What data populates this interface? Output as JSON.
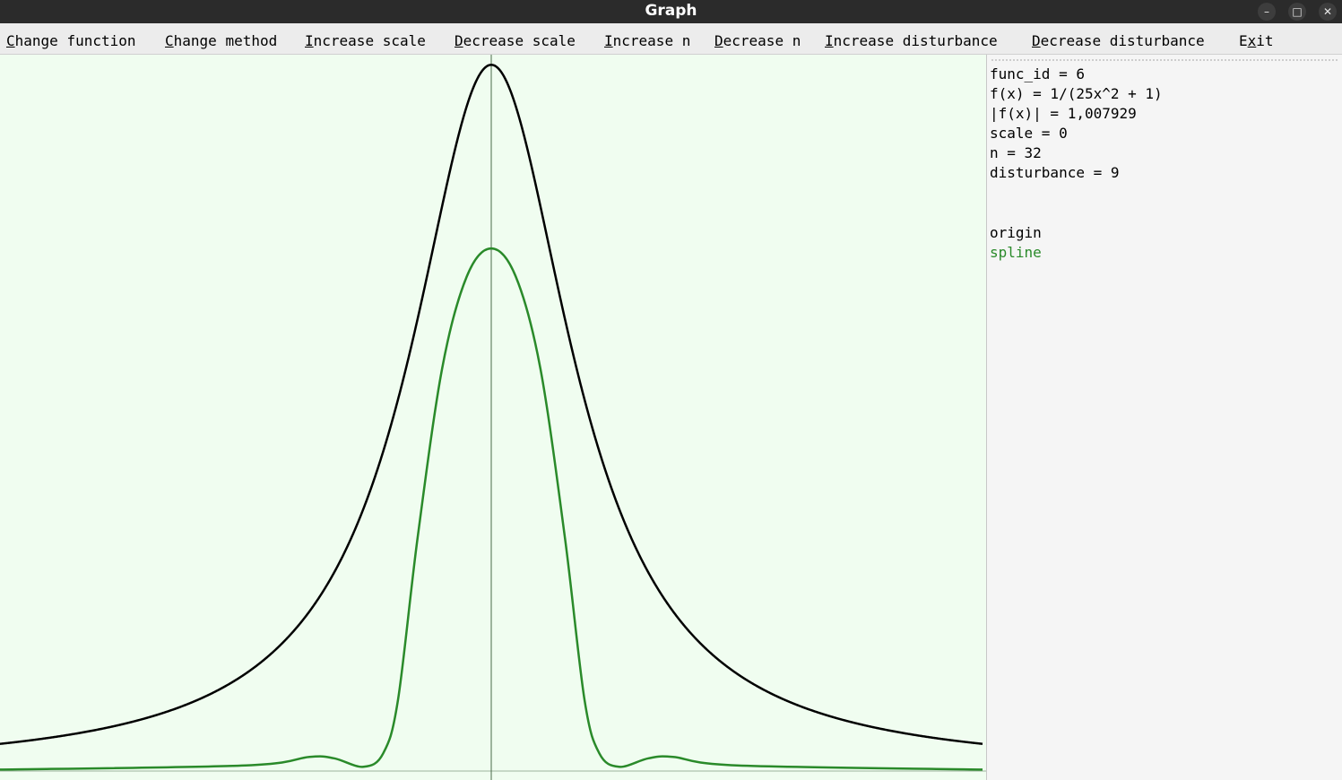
{
  "window": {
    "title": "Graph",
    "controls": {
      "minimize": "–",
      "maximize": "□",
      "close": "✕"
    }
  },
  "menu": [
    {
      "mnemonic": "C",
      "rest": "hange function"
    },
    {
      "mnemonic": "C",
      "rest": "hange method"
    },
    {
      "mnemonic": "I",
      "rest": "ncrease scale"
    },
    {
      "mnemonic": "D",
      "rest": "ecrease scale"
    },
    {
      "mnemonic": "I",
      "rest": "ncrease n"
    },
    {
      "mnemonic": "D",
      "rest": "ecrease n"
    },
    {
      "mnemonic": "I",
      "rest": "ncrease disturbance"
    },
    {
      "mnemonic": "D",
      "rest": "ecrease disturbance"
    },
    {
      "prefix": "E",
      "mnemonic": "x",
      "rest": "it"
    }
  ],
  "info": {
    "func_id": "func_id = 6",
    "formula": "f(x) = 1/(25x^2 + 1)",
    "norm": "|f(x)| = 1,007929",
    "scale": "scale = 0",
    "n": "n = 32",
    "disturbance": "disturbance = 9"
  },
  "legend": {
    "origin": "origin",
    "spline": "spline"
  },
  "colors": {
    "plot_background": "#f0fdf0",
    "origin": "#000000",
    "spline": "#2a8a2a",
    "axis": "#4a6a4a"
  },
  "chart_data": {
    "type": "line",
    "x_range": [
      -1,
      1
    ],
    "y_range": [
      0,
      1.008
    ],
    "series": [
      {
        "name": "origin",
        "function": "1/(25x^2 + 1)"
      },
      {
        "name": "spline",
        "x": [
          -1,
          -0.5,
          -0.37,
          -0.32,
          -0.26,
          -0.22,
          -0.19,
          -0.15,
          -0.1,
          -0.05,
          0,
          0.05,
          0.1,
          0.15,
          0.19,
          0.22,
          0.26,
          0.32,
          0.37,
          0.5,
          1
        ],
        "y": [
          0.002,
          0.008,
          0.02,
          0.018,
          0.006,
          0.025,
          0.1,
          0.33,
          0.57,
          0.7,
          0.74,
          0.7,
          0.57,
          0.33,
          0.1,
          0.025,
          0.006,
          0.018,
          0.02,
          0.008,
          0.002
        ]
      }
    ]
  }
}
